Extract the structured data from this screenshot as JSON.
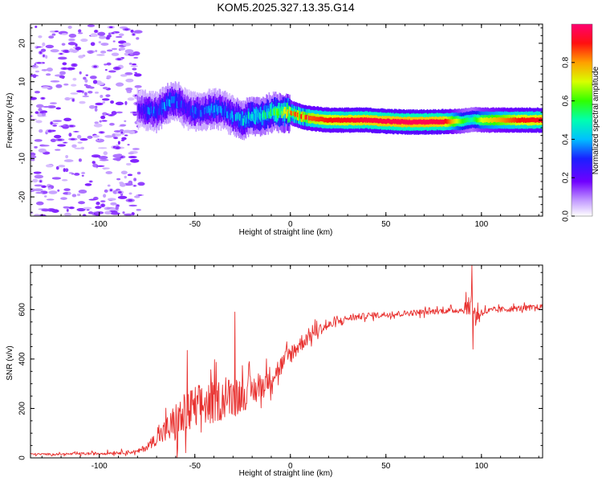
{
  "chart_data": [
    {
      "type": "heatmap",
      "title": "KOM5.2025.327.13.35.G14",
      "xlabel": "Height of straight line (km)",
      "ylabel": "Frequency (Hz)",
      "xlim": [
        -136,
        132
      ],
      "ylim": [
        -25,
        25
      ],
      "xticks": [
        -100,
        -50,
        0,
        50,
        100
      ],
      "yticks": [
        -20,
        -10,
        0,
        10,
        20
      ],
      "colorbar": {
        "label": "Normalized spectral amplitude",
        "range": [
          0,
          1
        ],
        "ticks": [
          0.0,
          0.2,
          0.4,
          0.6,
          0.8
        ],
        "tick_labels": [
          "0.0",
          "0.2",
          "0.4",
          "0.6",
          "0.8"
        ],
        "colormap": [
          "#ffffff",
          "#9a00ff",
          "#3a00ff",
          "#0080ff",
          "#00e0ff",
          "#00ff60",
          "#80ff00",
          "#ffe000",
          "#ff6000",
          "#ff0040",
          "#ff0080"
        ]
      },
      "noise_region": {
        "x_range": [
          -136,
          -78
        ],
        "y_range": [
          -25,
          25
        ],
        "amplitude": 0.08
      },
      "ridge": {
        "x": [
          -80,
          -75,
          -70,
          -65,
          -62,
          -58,
          -55,
          -50,
          -45,
          -40,
          -35,
          -30,
          -25,
          -20,
          -15,
          -10,
          -5,
          0,
          5,
          10,
          20,
          30,
          40,
          50,
          60,
          70,
          80,
          90,
          95,
          100,
          110,
          120,
          132
        ],
        "freq": [
          3,
          2.5,
          2,
          4,
          5,
          4.5,
          3,
          2,
          2.5,
          3,
          2.5,
          1,
          0,
          1,
          1,
          2,
          2,
          2,
          1,
          0.5,
          0,
          0,
          0,
          -0.3,
          -0.5,
          -0.5,
          -0.4,
          -0.3,
          0.2,
          0,
          0,
          0,
          0
        ],
        "amplitude": [
          0.2,
          0.3,
          0.3,
          0.35,
          0.35,
          0.3,
          0.25,
          0.3,
          0.3,
          0.35,
          0.3,
          0.35,
          0.4,
          0.45,
          0.45,
          0.5,
          0.55,
          0.7,
          0.8,
          0.85,
          0.9,
          0.92,
          0.95,
          0.96,
          0.97,
          0.97,
          0.95,
          0.6,
          0.5,
          0.7,
          0.8,
          0.9,
          0.92
        ]
      }
    },
    {
      "type": "line",
      "xlabel": "Height of straight line (km)",
      "ylabel": "SNR (v/v)",
      "xlim": [
        -136,
        132
      ],
      "ylim": [
        0,
        780
      ],
      "xticks": [
        -100,
        -50,
        0,
        50,
        100
      ],
      "yticks": [
        0,
        200,
        400,
        600
      ],
      "series": [
        {
          "name": "SNR",
          "color": "#e8312f",
          "x": [
            -136,
            -120,
            -100,
            -80,
            -75,
            -70,
            -65,
            -60,
            -55,
            -50,
            -45,
            -40,
            -35,
            -30,
            -25,
            -20,
            -15,
            -10,
            -5,
            0,
            5,
            10,
            15,
            20,
            25,
            30,
            40,
            50,
            60,
            70,
            80,
            90,
            93,
            95,
            97,
            100,
            110,
            120,
            132
          ],
          "y": [
            15,
            15,
            18,
            25,
            45,
            80,
            110,
            140,
            170,
            200,
            215,
            225,
            240,
            250,
            260,
            270,
            290,
            330,
            370,
            420,
            460,
            495,
            520,
            535,
            550,
            565,
            575,
            580,
            585,
            590,
            595,
            598,
            610,
            620,
            570,
            590,
            600,
            605,
            610
          ],
          "noise": [
            5,
            5,
            8,
            10,
            20,
            35,
            70,
            110,
            120,
            120,
            110,
            110,
            100,
            100,
            90,
            80,
            70,
            60,
            55,
            50,
            45,
            40,
            30,
            25,
            20,
            18,
            15,
            15,
            15,
            15,
            15,
            15,
            40,
            80,
            60,
            20,
            15,
            15,
            15
          ],
          "spikes": [
            {
              "x": -54,
              "y": 435
            },
            {
              "x": -29,
              "y": 590
            },
            {
              "x": 95,
              "y": 780
            },
            {
              "x": 95.5,
              "y": 440
            },
            {
              "x": 92,
              "y": 670
            }
          ]
        }
      ]
    }
  ]
}
